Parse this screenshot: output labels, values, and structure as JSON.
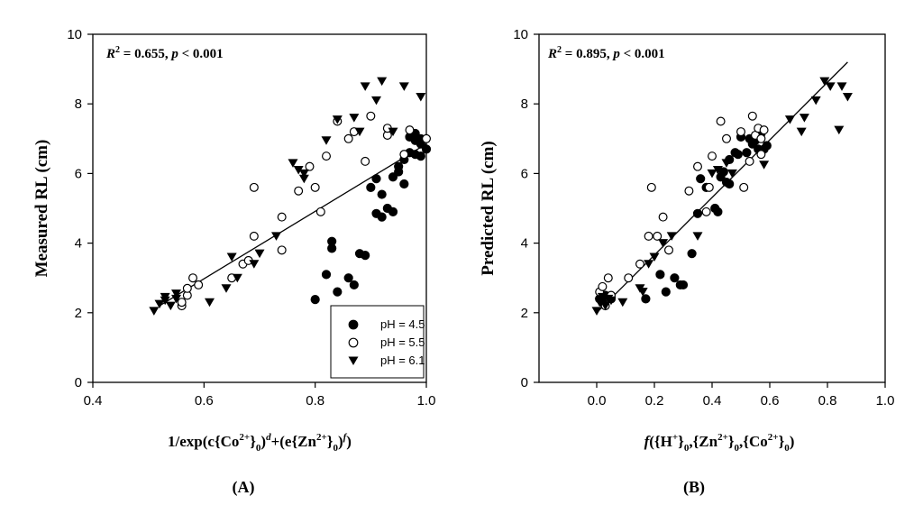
{
  "colors": {
    "ink": "#000000",
    "background": "#ffffff"
  },
  "chart_data": [
    {
      "type": "scatter",
      "panel_label": "(A)",
      "ylabel": "Measured RL (cm)",
      "xlabel": {
        "text": "1/exp(c{Co2+}0)d+(e{Zn2+}0)f)",
        "parts": [
          "1/exp(c{Co",
          "2+",
          "}",
          "0",
          ")",
          "d",
          "+(e{Zn",
          "2+",
          "}",
          "0",
          ")",
          "f",
          ")"
        ]
      },
      "annotation": {
        "R2": "0.655",
        "p": "< 0.001",
        "text": "R2 = 0.655, p < 0.001"
      },
      "xlim": [
        0.4,
        1.0
      ],
      "ylim": [
        0,
        10
      ],
      "xticks": [
        "0.4",
        "0.6",
        "0.8",
        "1.0"
      ],
      "yticks": [
        "0",
        "2",
        "4",
        "6",
        "8",
        "10"
      ],
      "fit_line": [
        [
          0.52,
          2.2
        ],
        [
          1.0,
          6.85
        ]
      ],
      "legend": {
        "position": "bottom-right",
        "entries": [
          {
            "label": "pH = 4.5",
            "marker": "filled-circle"
          },
          {
            "label": "pH = 5.5",
            "marker": "open-circle"
          },
          {
            "label": "pH = 6.1",
            "marker": "filled-triangle-down"
          }
        ]
      },
      "series": [
        {
          "name": "pH = 4.5",
          "marker": "filled-circle",
          "points": [
            [
              0.8,
              2.38
            ],
            [
              0.82,
              3.1
            ],
            [
              0.83,
              3.85
            ],
            [
              0.83,
              4.05
            ],
            [
              0.84,
              2.6
            ],
            [
              0.86,
              3.0
            ],
            [
              0.87,
              2.8
            ],
            [
              0.88,
              3.7
            ],
            [
              0.89,
              3.65
            ],
            [
              0.9,
              5.6
            ],
            [
              0.91,
              4.85
            ],
            [
              0.91,
              5.85
            ],
            [
              0.92,
              4.75
            ],
            [
              0.92,
              5.4
            ],
            [
              0.93,
              5.0
            ],
            [
              0.94,
              4.9
            ],
            [
              0.94,
              5.9
            ],
            [
              0.95,
              6.05
            ],
            [
              0.95,
              6.2
            ],
            [
              0.96,
              5.7
            ],
            [
              0.96,
              6.4
            ],
            [
              0.97,
              6.6
            ],
            [
              0.97,
              7.05
            ],
            [
              0.98,
              6.55
            ],
            [
              0.98,
              7.15
            ],
            [
              0.99,
              6.85
            ],
            [
              0.99,
              7.0
            ],
            [
              1.0,
              6.7
            ],
            [
              0.99,
              6.5
            ],
            [
              0.98,
              6.95
            ]
          ]
        },
        {
          "name": "pH = 5.5",
          "marker": "open-circle",
          "points": [
            [
              0.56,
              2.2
            ],
            [
              0.56,
              2.3
            ],
            [
              0.57,
              2.5
            ],
            [
              0.57,
              2.7
            ],
            [
              0.58,
              3.0
            ],
            [
              0.59,
              2.8
            ],
            [
              0.65,
              3.0
            ],
            [
              0.67,
              3.4
            ],
            [
              0.68,
              3.5
            ],
            [
              0.69,
              4.2
            ],
            [
              0.69,
              5.6
            ],
            [
              0.74,
              4.75
            ],
            [
              0.74,
              3.8
            ],
            [
              0.77,
              5.5
            ],
            [
              0.79,
              6.2
            ],
            [
              0.8,
              5.6
            ],
            [
              0.81,
              4.9
            ],
            [
              0.82,
              6.5
            ],
            [
              0.84,
              7.5
            ],
            [
              0.86,
              7.0
            ],
            [
              0.87,
              7.2
            ],
            [
              0.89,
              6.35
            ],
            [
              0.9,
              7.65
            ],
            [
              0.93,
              7.1
            ],
            [
              0.93,
              7.3
            ],
            [
              0.96,
              6.55
            ],
            [
              0.97,
              7.25
            ],
            [
              1.0,
              7.0
            ]
          ]
        },
        {
          "name": "pH = 6.1",
          "marker": "filled-triangle-down",
          "points": [
            [
              0.51,
              2.05
            ],
            [
              0.52,
              2.25
            ],
            [
              0.53,
              2.35
            ],
            [
              0.53,
              2.45
            ],
            [
              0.54,
              2.2
            ],
            [
              0.55,
              2.4
            ],
            [
              0.55,
              2.55
            ],
            [
              0.61,
              2.3
            ],
            [
              0.64,
              2.7
            ],
            [
              0.65,
              3.6
            ],
            [
              0.66,
              3.0
            ],
            [
              0.69,
              3.4
            ],
            [
              0.7,
              3.7
            ],
            [
              0.73,
              4.2
            ],
            [
              0.76,
              6.3
            ],
            [
              0.77,
              6.1
            ],
            [
              0.78,
              5.85
            ],
            [
              0.78,
              6.0
            ],
            [
              0.82,
              6.95
            ],
            [
              0.84,
              7.55
            ],
            [
              0.87,
              7.6
            ],
            [
              0.88,
              7.2
            ],
            [
              0.89,
              8.5
            ],
            [
              0.91,
              8.1
            ],
            [
              0.92,
              8.65
            ],
            [
              0.94,
              7.2
            ],
            [
              0.96,
              8.5
            ],
            [
              0.99,
              8.2
            ]
          ]
        }
      ]
    },
    {
      "type": "scatter",
      "panel_label": "(B)",
      "ylabel": "Predicted RL (cm)",
      "xlabel": {
        "text": "f({H+}0,{Zn2+}0,{Co2+}0)",
        "parts": [
          "f",
          "({H",
          "+",
          "}",
          "0",
          ",{Zn",
          "2+",
          "}",
          "0",
          ",{Co",
          "2+",
          "}",
          "0",
          ")"
        ]
      },
      "annotation": {
        "R2": "0.895",
        "p": "< 0.001",
        "text": "R2 = 0.895, p < 0.001"
      },
      "xlim": [
        -0.2,
        1.0
      ],
      "ylim": [
        0,
        10
      ],
      "xticks": [
        "0.0",
        "0.2",
        "0.4",
        "0.6",
        "0.8",
        "1.0"
      ],
      "yticks": [
        "0",
        "2",
        "4",
        "6",
        "8",
        "10"
      ],
      "fit_line": [
        [
          0.0,
          2.0
        ],
        [
          0.87,
          9.2
        ]
      ],
      "series": [
        {
          "name": "pH = 4.5",
          "marker": "filled-circle",
          "points": [
            [
              0.01,
              2.4
            ],
            [
              0.02,
              2.3
            ],
            [
              0.03,
              2.5
            ],
            [
              0.05,
              2.4
            ],
            [
              0.17,
              2.4
            ],
            [
              0.22,
              3.1
            ],
            [
              0.24,
              2.6
            ],
            [
              0.27,
              3.0
            ],
            [
              0.29,
              2.8
            ],
            [
              0.3,
              2.8
            ],
            [
              0.33,
              3.7
            ],
            [
              0.35,
              4.85
            ],
            [
              0.36,
              5.85
            ],
            [
              0.38,
              5.6
            ],
            [
              0.41,
              5.0
            ],
            [
              0.42,
              4.9
            ],
            [
              0.43,
              5.9
            ],
            [
              0.44,
              6.05
            ],
            [
              0.45,
              5.75
            ],
            [
              0.46,
              5.7
            ],
            [
              0.46,
              6.4
            ],
            [
              0.48,
              6.6
            ],
            [
              0.49,
              6.55
            ],
            [
              0.5,
              7.05
            ],
            [
              0.52,
              6.6
            ],
            [
              0.53,
              7.0
            ],
            [
              0.54,
              6.85
            ],
            [
              0.55,
              6.95
            ],
            [
              0.56,
              6.7
            ],
            [
              0.57,
              7.15
            ],
            [
              0.58,
              6.7
            ],
            [
              0.59,
              6.8
            ]
          ]
        },
        {
          "name": "pH = 5.5",
          "marker": "open-circle",
          "points": [
            [
              0.01,
              2.6
            ],
            [
              0.02,
              2.75
            ],
            [
              0.03,
              2.2
            ],
            [
              0.04,
              3.0
            ],
            [
              0.05,
              2.5
            ],
            [
              0.11,
              3.0
            ],
            [
              0.15,
              3.4
            ],
            [
              0.18,
              4.2
            ],
            [
              0.19,
              5.6
            ],
            [
              0.21,
              4.2
            ],
            [
              0.23,
              4.75
            ],
            [
              0.25,
              3.8
            ],
            [
              0.32,
              5.5
            ],
            [
              0.35,
              6.2
            ],
            [
              0.38,
              4.9
            ],
            [
              0.39,
              5.6
            ],
            [
              0.4,
              6.5
            ],
            [
              0.43,
              7.5
            ],
            [
              0.45,
              7.0
            ],
            [
              0.5,
              7.2
            ],
            [
              0.51,
              5.6
            ],
            [
              0.53,
              6.35
            ],
            [
              0.54,
              7.65
            ],
            [
              0.55,
              7.1
            ],
            [
              0.56,
              7.3
            ],
            [
              0.57,
              6.55
            ],
            [
              0.58,
              7.25
            ],
            [
              0.57,
              7.0
            ]
          ]
        },
        {
          "name": "pH = 6.1",
          "marker": "filled-triangle-down",
          "points": [
            [
              0.0,
              2.05
            ],
            [
              0.01,
              2.3
            ],
            [
              0.02,
              2.45
            ],
            [
              0.03,
              2.2
            ],
            [
              0.04,
              2.4
            ],
            [
              0.05,
              2.35
            ],
            [
              0.09,
              2.3
            ],
            [
              0.15,
              2.7
            ],
            [
              0.16,
              2.6
            ],
            [
              0.18,
              3.4
            ],
            [
              0.2,
              3.6
            ],
            [
              0.23,
              4.0
            ],
            [
              0.26,
              4.2
            ],
            [
              0.35,
              4.2
            ],
            [
              0.4,
              6.0
            ],
            [
              0.42,
              6.1
            ],
            [
              0.45,
              6.3
            ],
            [
              0.47,
              6.0
            ],
            [
              0.58,
              6.25
            ],
            [
              0.67,
              7.55
            ],
            [
              0.71,
              7.2
            ],
            [
              0.72,
              7.6
            ],
            [
              0.76,
              8.1
            ],
            [
              0.79,
              8.65
            ],
            [
              0.81,
              8.5
            ],
            [
              0.84,
              7.25
            ],
            [
              0.85,
              8.5
            ],
            [
              0.87,
              8.2
            ]
          ]
        }
      ]
    }
  ]
}
